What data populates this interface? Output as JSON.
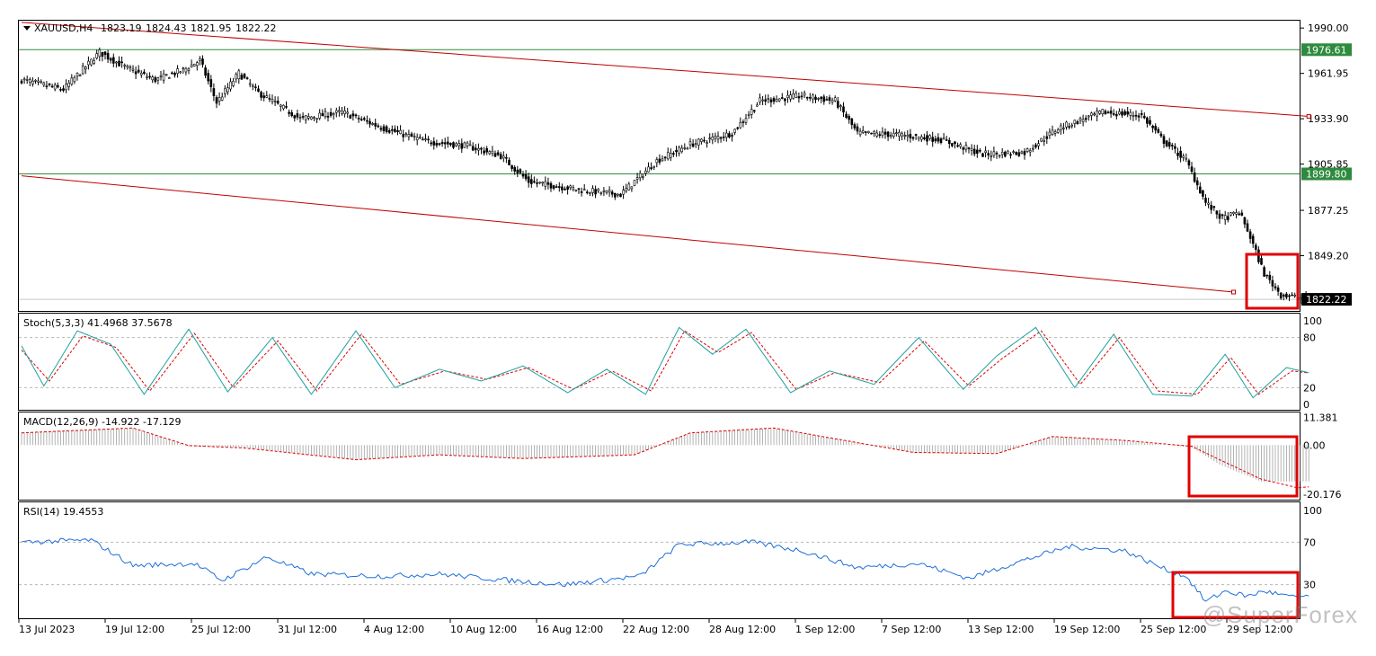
{
  "watermark": "@SuperForex",
  "colors": {
    "candle": "#000000",
    "channel_line": "#c00000",
    "hline": "#2e8b3e",
    "stoch_main": "#20a0a0",
    "stoch_signal": "#dd0000",
    "macd_hist": "#a0a0a0",
    "macd_signal": "#dd0000",
    "rsi": "#1e6fd9",
    "highlight_box": "#e00000",
    "level_label_bg": "#2e8b3e",
    "price_label_bg": "#000000"
  },
  "x_axis": {
    "labels": [
      "13 Jul 2023",
      "19 Jul 12:00",
      "25 Jul 12:00",
      "31 Jul 12:00",
      "4 Aug 12:00",
      "10 Aug 12:00",
      "16 Aug 12:00",
      "22 Aug 12:00",
      "28 Aug 12:00",
      "1 Sep 12:00",
      "7 Sep 12:00",
      "13 Sep 12:00",
      "19 Sep 12:00",
      "25 Sep 12:00",
      "29 Sep 12:00"
    ]
  },
  "chart_data": [
    {
      "type": "candlestick",
      "title": "XAUUSD,H4",
      "ohlc_readout": [
        "1823.19",
        "1824.43",
        "1821.95",
        "1822.22"
      ],
      "last_price": "1822.22",
      "ylim": [
        1815.6,
        1994.0
      ],
      "tick_labels": [
        "1990.00",
        "1961.95",
        "1933.90",
        "1905.85",
        "1877.25",
        "1849.20"
      ],
      "tick_values": [
        1990.0,
        1961.95,
        1933.9,
        1905.85,
        1877.25,
        1849.2
      ],
      "horizontal_levels": [
        {
          "label": "1976.61",
          "value": 1976.61
        },
        {
          "label": "1899.80",
          "value": 1899.8
        }
      ],
      "close_anchors": [
        [
          0,
          1958
        ],
        [
          15,
          1952
        ],
        [
          28,
          1975
        ],
        [
          38,
          1965
        ],
        [
          48,
          1958
        ],
        [
          58,
          1964
        ],
        [
          64,
          1970
        ],
        [
          70,
          1944
        ],
        [
          78,
          1962
        ],
        [
          85,
          1950
        ],
        [
          100,
          1934
        ],
        [
          115,
          1938
        ],
        [
          130,
          1928
        ],
        [
          145,
          1920
        ],
        [
          160,
          1917
        ],
        [
          172,
          1911
        ],
        [
          182,
          1895
        ],
        [
          200,
          1890
        ],
        [
          215,
          1887
        ],
        [
          228,
          1908
        ],
        [
          240,
          1918
        ],
        [
          255,
          1925
        ],
        [
          265,
          1945
        ],
        [
          280,
          1948
        ],
        [
          292,
          1945
        ],
        [
          300,
          1925
        ],
        [
          315,
          1924
        ],
        [
          330,
          1921
        ],
        [
          345,
          1912
        ],
        [
          360,
          1913
        ],
        [
          372,
          1928
        ],
        [
          388,
          1938
        ],
        [
          402,
          1936
        ],
        [
          410,
          1920
        ],
        [
          418,
          1908
        ],
        [
          425,
          1882
        ],
        [
          431,
          1872
        ],
        [
          437,
          1876
        ],
        [
          440,
          1865
        ],
        [
          446,
          1838
        ],
        [
          452,
          1825
        ],
        [
          462,
          1822
        ]
      ],
      "channel_upper": {
        "start": [
          0,
          1993.5
        ],
        "end": [
          462,
          1935.4
        ]
      },
      "channel_lower": {
        "start": [
          0,
          1898.6
        ],
        "end": [
          435,
          1826.7
        ]
      }
    },
    {
      "type": "line",
      "title": "Stoch(5,3,3) 41.4968 37.5678",
      "ylim": [
        0,
        100
      ],
      "tick_labels": [
        "100",
        "80",
        "20",
        "0"
      ],
      "levels": [
        80,
        20
      ],
      "series": [
        {
          "values_anchors": [
            [
              0,
              70
            ],
            [
              8,
              22
            ],
            [
              20,
              88
            ],
            [
              32,
              72
            ],
            [
              44,
              12
            ],
            [
              60,
              90
            ],
            [
              74,
              15
            ],
            [
              90,
              80
            ],
            [
              104,
              12
            ],
            [
              120,
              88
            ],
            [
              134,
              20
            ],
            [
              150,
              42
            ],
            [
              165,
              28
            ],
            [
              180,
              46
            ],
            [
              196,
              14
            ],
            [
              210,
              42
            ],
            [
              224,
              12
            ],
            [
              236,
              92
            ],
            [
              248,
              60
            ],
            [
              260,
              90
            ],
            [
              276,
              14
            ],
            [
              290,
              40
            ],
            [
              306,
              24
            ],
            [
              322,
              80
            ],
            [
              338,
              18
            ],
            [
              350,
              58
            ],
            [
              364,
              92
            ],
            [
              378,
              20
            ],
            [
              392,
              84
            ],
            [
              406,
              12
            ],
            [
              420,
              10
            ],
            [
              432,
              60
            ],
            [
              442,
              8
            ],
            [
              454,
              44
            ],
            [
              462,
              38
            ]
          ]
        },
        {
          "values_anchors": [
            [
              0,
              65
            ],
            [
              10,
              28
            ],
            [
              22,
              82
            ],
            [
              34,
              68
            ],
            [
              46,
              16
            ],
            [
              62,
              85
            ],
            [
              76,
              20
            ],
            [
              92,
              76
            ],
            [
              106,
              16
            ],
            [
              122,
              84
            ],
            [
              136,
              24
            ],
            [
              152,
              40
            ],
            [
              167,
              30
            ],
            [
              182,
              44
            ],
            [
              198,
              18
            ],
            [
              212,
              40
            ],
            [
              226,
              16
            ],
            [
              238,
              88
            ],
            [
              250,
              62
            ],
            [
              262,
              86
            ],
            [
              278,
              18
            ],
            [
              292,
              38
            ],
            [
              308,
              26
            ],
            [
              324,
              76
            ],
            [
              340,
              22
            ],
            [
              352,
              55
            ],
            [
              366,
              88
            ],
            [
              380,
              24
            ],
            [
              394,
              80
            ],
            [
              408,
              16
            ],
            [
              422,
              12
            ],
            [
              434,
              56
            ],
            [
              444,
              12
            ],
            [
              456,
              40
            ],
            [
              462,
              37.6
            ]
          ]
        }
      ]
    },
    {
      "type": "bar+line",
      "title": "MACD(12,26,9) -14.922 -17.129",
      "ylim": [
        -22.0,
        13.0
      ],
      "tick_labels": [
        "11.381",
        "0.00",
        "-20.176"
      ],
      "tick_values": [
        11.381,
        0.0,
        -20.176
      ],
      "series": [
        {
          "name": "histogram",
          "values_anchors": [
            [
              0,
              5.2
            ],
            [
              40,
              7.0
            ],
            [
              60,
              -0.5
            ],
            [
              80,
              -1.0
            ],
            [
              120,
              -6.0
            ],
            [
              150,
              -4.0
            ],
            [
              180,
              -5.5
            ],
            [
              220,
              -4.0
            ],
            [
              240,
              5.0
            ],
            [
              270,
              7.0
            ],
            [
              300,
              1.0
            ],
            [
              320,
              -3.0
            ],
            [
              350,
              -3.5
            ],
            [
              370,
              3.5
            ],
            [
              395,
              2.0
            ],
            [
              420,
              -1.0
            ],
            [
              430,
              -8.0
            ],
            [
              445,
              -15.0
            ],
            [
              462,
              -14.9
            ]
          ]
        },
        {
          "name": "signal",
          "values_anchors": [
            [
              0,
              5.0
            ],
            [
              40,
              7.0
            ],
            [
              60,
              -0.2
            ],
            [
              80,
              -1.2
            ],
            [
              120,
              -6.0
            ],
            [
              150,
              -4.0
            ],
            [
              180,
              -5.5
            ],
            [
              220,
              -4.0
            ],
            [
              240,
              5.0
            ],
            [
              270,
              7.0
            ],
            [
              300,
              1.0
            ],
            [
              320,
              -3.0
            ],
            [
              350,
              -3.5
            ],
            [
              370,
              3.5
            ],
            [
              395,
              2.0
            ],
            [
              420,
              -0.5
            ],
            [
              430,
              -6.0
            ],
            [
              445,
              -14.0
            ],
            [
              458,
              -17.5
            ],
            [
              462,
              -17.1
            ]
          ]
        }
      ]
    },
    {
      "type": "line",
      "title": "RSI(14) 19.4553",
      "ylim": [
        0,
        100
      ],
      "tick_labels": [
        "100",
        "70",
        "30"
      ],
      "levels": [
        70,
        30
      ],
      "series": [
        {
          "values_anchors": [
            [
              0,
              70
            ],
            [
              25,
              72
            ],
            [
              40,
              48
            ],
            [
              62,
              50
            ],
            [
              72,
              34
            ],
            [
              88,
              56
            ],
            [
              104,
              40
            ],
            [
              130,
              38
            ],
            [
              150,
              40
            ],
            [
              175,
              34
            ],
            [
              195,
              30
            ],
            [
              222,
              38
            ],
            [
              236,
              68
            ],
            [
              262,
              70
            ],
            [
              280,
              62
            ],
            [
              300,
              46
            ],
            [
              322,
              50
            ],
            [
              340,
              36
            ],
            [
              356,
              50
            ],
            [
              376,
              66
            ],
            [
              396,
              62
            ],
            [
              410,
              45
            ],
            [
              418,
              38
            ],
            [
              425,
              14
            ],
            [
              432,
              24
            ],
            [
              440,
              19
            ],
            [
              446,
              24
            ],
            [
              456,
              18
            ],
            [
              462,
              19.5
            ]
          ]
        }
      ]
    }
  ]
}
